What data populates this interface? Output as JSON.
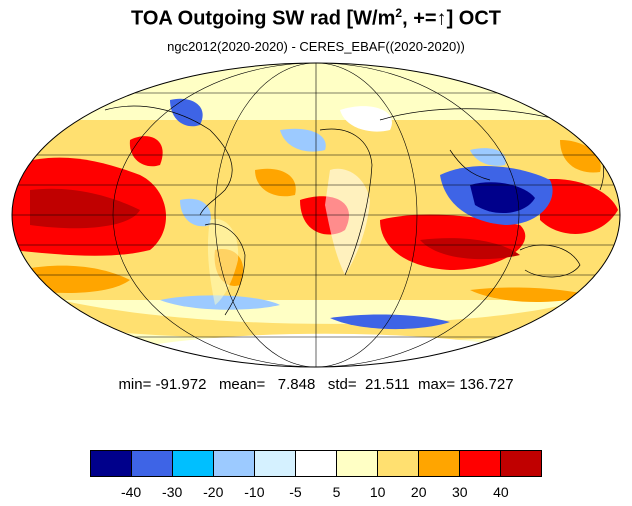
{
  "title": {
    "main": "TOA Outgoing SW rad [W/m",
    "superscript": "2",
    "suffix": ", +=↑] OCT"
  },
  "subtitle": "ngc2012(2020-2020) - CERES_EBAF((2020-2020))",
  "stats": {
    "min_label": "min=",
    "min": "-91.972",
    "mean_label": "mean=",
    "mean": "7.848",
    "std_label": "std=",
    "std": "21.511",
    "max_label": "max=",
    "max": "136.727"
  },
  "colorbar": {
    "colors": [
      "#00008b",
      "#3e64e6",
      "#00bfff",
      "#9ccaff",
      "#d5f1ff",
      "#ffffff",
      "#ffffc5",
      "#ffe070",
      "#ffa500",
      "#ff0000",
      "#c00000"
    ],
    "ticks": [
      "-40",
      "-30",
      "-20",
      "-10",
      "-5",
      "5",
      "10",
      "20",
      "30",
      "40"
    ]
  },
  "map": {
    "projection": "Mollweide",
    "variable": "difference field, shaded by colorbar bins",
    "outline_color": "#000000",
    "grid": true
  }
}
